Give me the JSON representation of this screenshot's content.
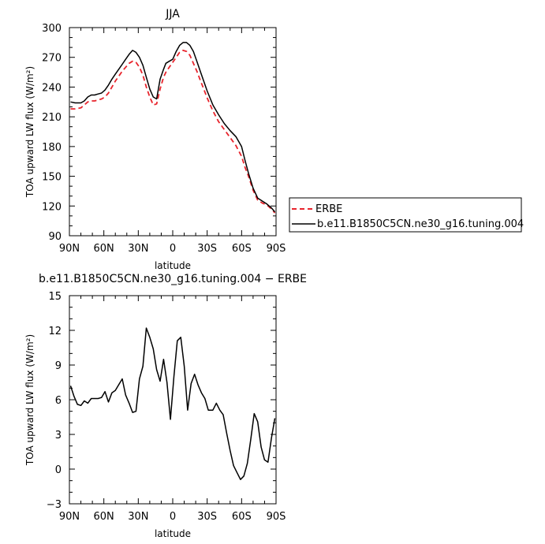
{
  "chart_data": [
    {
      "type": "line",
      "title": "JJA",
      "xlabel": "latitude",
      "ylabel": "TOA upward LW flux (W/m²)",
      "xlim": [
        90,
        -90
      ],
      "ylim": [
        90,
        300
      ],
      "x_ticks": [
        90,
        60,
        30,
        0,
        -30,
        -60,
        -90
      ],
      "x_tick_labels": [
        "90N",
        "60N",
        "30N",
        "0",
        "30S",
        "60S",
        "90S"
      ],
      "y_ticks": [
        90,
        120,
        150,
        180,
        210,
        240,
        270,
        300
      ],
      "y_tick_labels": [
        "90",
        "120",
        "150",
        "180",
        "210",
        "240",
        "270",
        "300"
      ],
      "legend_placement": "right",
      "series": [
        {
          "name": "ERBE",
          "color": "#e8242c",
          "style": "dashed",
          "x": [
            89,
            85,
            80,
            77,
            74,
            71,
            68,
            65,
            62,
            59,
            56,
            53,
            50,
            47,
            44,
            41,
            38,
            35,
            32,
            29,
            26,
            23,
            20,
            17,
            14,
            11,
            8,
            6,
            3,
            0,
            -3,
            -6,
            -9,
            -12,
            -15,
            -18,
            -21,
            -24,
            -27,
            -30,
            -35,
            -40,
            -45,
            -50,
            -55,
            -60,
            -63,
            -66,
            -70,
            -74,
            -78,
            -82,
            -86,
            -89
          ],
          "y": [
            218,
            218,
            219,
            222,
            225,
            226,
            226,
            227,
            228,
            230,
            234,
            240,
            246,
            251,
            256,
            260,
            264,
            266,
            265,
            260,
            252,
            240,
            230,
            222,
            223,
            238,
            250,
            255,
            260,
            265,
            270,
            275,
            277,
            276,
            272,
            264,
            256,
            247,
            238,
            229,
            216,
            205,
            197,
            189,
            181,
            170,
            159,
            150,
            136,
            126,
            123,
            121,
            117,
            113
          ]
        },
        {
          "name": "b.e11.B1850C5CN.ne30_g16.tuning.004",
          "color": "#000000",
          "style": "solid",
          "x": [
            89,
            85,
            80,
            77,
            74,
            71,
            68,
            65,
            62,
            59,
            56,
            53,
            50,
            47,
            44,
            41,
            38,
            35,
            32,
            29,
            26,
            23,
            20,
            17,
            14,
            11,
            8,
            6,
            3,
            0,
            -3,
            -6,
            -9,
            -12,
            -15,
            -18,
            -21,
            -24,
            -27,
            -30,
            -35,
            -40,
            -45,
            -50,
            -55,
            -60,
            -63,
            -66,
            -70,
            -74,
            -78,
            -82,
            -86,
            -89
          ],
          "y": [
            225,
            224,
            224,
            226,
            230,
            232,
            232,
            233,
            234,
            237,
            242,
            248,
            253,
            258,
            263,
            268,
            273,
            277,
            275,
            270,
            262,
            250,
            238,
            230,
            228,
            248,
            258,
            264,
            266,
            268,
            276,
            282,
            285,
            285,
            282,
            276,
            266,
            256,
            246,
            236,
            222,
            212,
            203,
            196,
            190,
            180,
            166,
            153,
            138,
            128,
            125,
            122,
            118,
            114
          ]
        }
      ]
    },
    {
      "type": "line",
      "title": "b.e11.B1850C5CN.ne30_g16.tuning.004 − ERBE",
      "xlabel": "latitude",
      "ylabel": "TOA upward LW flux (W/m²)",
      "xlim": [
        90,
        -90
      ],
      "ylim": [
        -3,
        15
      ],
      "x_ticks": [
        90,
        60,
        30,
        0,
        -30,
        -60,
        -90
      ],
      "x_tick_labels": [
        "90N",
        "60N",
        "30N",
        "0",
        "30S",
        "60S",
        "90S"
      ],
      "y_ticks": [
        -3,
        0,
        3,
        6,
        9,
        12,
        15
      ],
      "y_tick_labels": [
        "−3",
        "0",
        "3",
        "6",
        "9",
        "12",
        "15"
      ],
      "series": [
        {
          "color": "#000000",
          "style": "solid",
          "x": [
            89,
            86,
            83,
            80,
            77,
            74,
            71,
            68,
            65,
            62,
            59,
            56,
            53,
            50,
            47,
            44,
            41,
            38,
            35,
            32,
            29,
            26,
            23,
            20,
            17,
            14,
            11,
            8,
            5,
            2,
            -1,
            -4,
            -7,
            -10,
            -13,
            -16,
            -19,
            -22,
            -25,
            -28,
            -31,
            -35,
            -38,
            -41,
            -44,
            -47,
            -50,
            -53,
            -56,
            -59,
            -62,
            -65,
            -68,
            -71,
            -74,
            -77,
            -80,
            -83,
            -86,
            -89
          ],
          "y": [
            7.2,
            6.3,
            5.6,
            5.5,
            5.9,
            5.7,
            6.1,
            6.1,
            6.1,
            6.2,
            6.7,
            5.8,
            6.6,
            6.8,
            7.3,
            7.8,
            6.4,
            5.7,
            4.9,
            5.0,
            7.8,
            8.9,
            12.2,
            11.4,
            10.4,
            8.6,
            7.6,
            9.5,
            7.5,
            4.3,
            8.0,
            11.1,
            11.4,
            8.9,
            5.1,
            7.4,
            8.2,
            7.3,
            6.6,
            6.1,
            5.1,
            5.1,
            5.7,
            5.1,
            4.7,
            3.1,
            1.6,
            0.3,
            -0.3,
            -0.9,
            -0.6,
            0.5,
            2.6,
            4.8,
            4.1,
            1.9,
            0.8,
            0.6,
            2.7,
            4.4
          ]
        }
      ]
    }
  ]
}
